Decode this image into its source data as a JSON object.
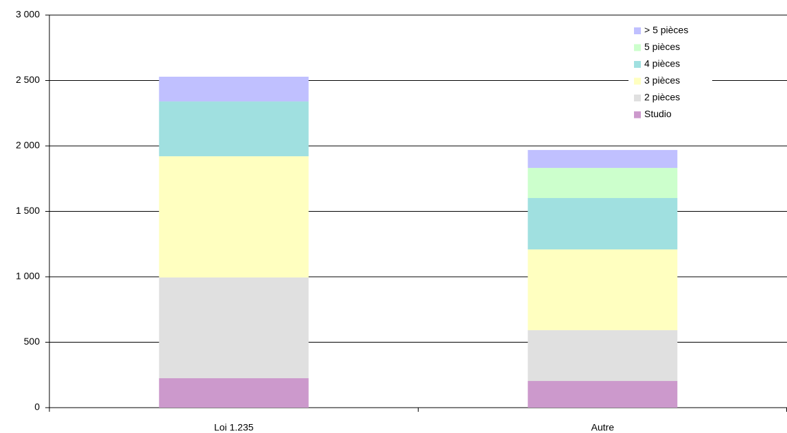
{
  "chart_data": {
    "type": "stacked_bar",
    "categories": [
      "Loi 1.235",
      "Autre"
    ],
    "series": [
      {
        "name": "Studio",
        "color": "#cc99cc",
        "values": [
          225,
          204
        ]
      },
      {
        "name": "2 pièces",
        "color": "#e0e0e0",
        "values": [
          770,
          388
        ]
      },
      {
        "name": "3 pièces",
        "color": "#ffffc0",
        "values": [
          926,
          617
        ]
      },
      {
        "name": "4 pièces",
        "color": "#a0e0e0",
        "values": [
          419,
          393
        ]
      },
      {
        "name": "5 pièces",
        "color": "#ccffcc",
        "values": [
          0,
          230
        ]
      },
      {
        "name": "> 5 pièces",
        "color": "#c0c0ff",
        "values": [
          189,
          137
        ]
      }
    ],
    "ylim": [
      0,
      3000
    ],
    "yticks": [
      0,
      {
        "value": 500,
        "label": "500"
      },
      {
        "value": 1000,
        "label": "1 000"
      },
      {
        "value": 1500,
        "label": "1 500"
      },
      {
        "value": 2000,
        "label": "2 000"
      },
      {
        "value": 2500,
        "label": "2 500"
      },
      {
        "value": 3000,
        "label": "3 000"
      }
    ],
    "grid": true,
    "legend": "top-right"
  }
}
